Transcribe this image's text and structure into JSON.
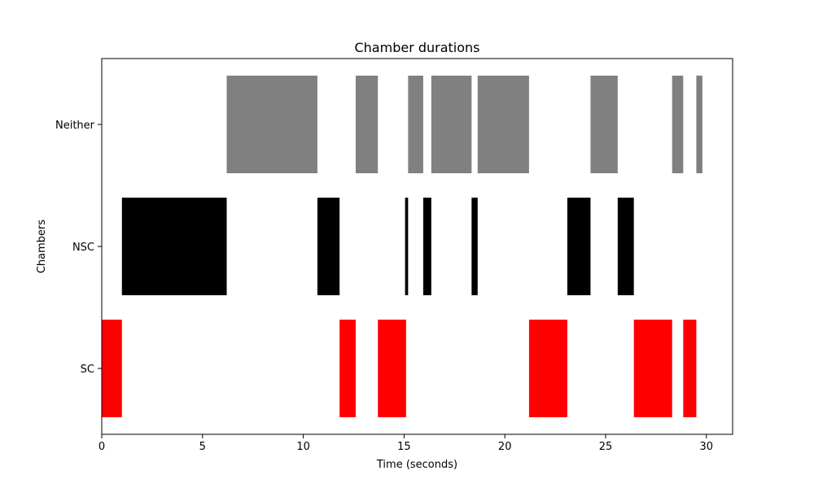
{
  "chart_data": {
    "type": "bar",
    "orientation": "horizontal-broken-bar",
    "title": "Chamber durations",
    "xlabel": "Time (seconds)",
    "ylabel": "Chambers",
    "xlim": [
      0,
      31.3
    ],
    "xticks": [
      0,
      5,
      10,
      15,
      20,
      25,
      30
    ],
    "categories": [
      "Neither",
      "NSC",
      "SC"
    ],
    "grid": false,
    "legend": "none",
    "series": [
      {
        "category": "Neither",
        "color": "#808080",
        "segments": [
          [
            6.2,
            10.7
          ],
          [
            12.6,
            13.7
          ],
          [
            15.2,
            15.95
          ],
          [
            16.35,
            18.35
          ],
          [
            18.65,
            21.2
          ],
          [
            24.25,
            25.6
          ],
          [
            28.3,
            28.85
          ],
          [
            29.5,
            29.8
          ]
        ]
      },
      {
        "category": "NSC",
        "color": "#000000",
        "segments": [
          [
            1.0,
            6.2
          ],
          [
            10.7,
            11.8
          ],
          [
            15.05,
            15.2
          ],
          [
            15.95,
            16.35
          ],
          [
            18.35,
            18.65
          ],
          [
            23.1,
            24.25
          ],
          [
            25.6,
            26.4
          ]
        ]
      },
      {
        "category": "SC",
        "color": "#ff0000",
        "segments": [
          [
            0.0,
            1.0
          ],
          [
            11.8,
            12.6
          ],
          [
            13.7,
            15.1
          ],
          [
            21.2,
            23.1
          ],
          [
            26.4,
            28.3
          ],
          [
            28.85,
            29.5
          ]
        ]
      }
    ]
  }
}
